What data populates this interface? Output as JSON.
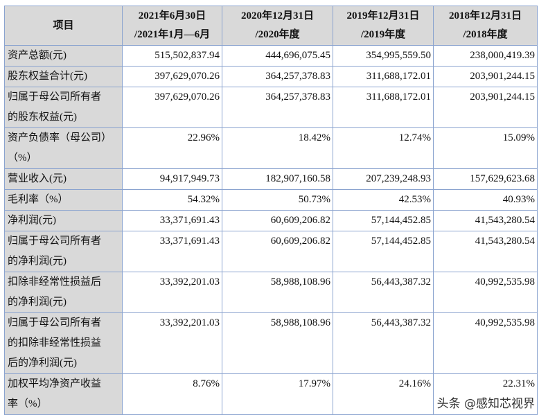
{
  "header": {
    "item": "项目",
    "columns": [
      [
        "2021年6月30日",
        "/2021年1月—6月"
      ],
      [
        "2020年12月31日",
        "/2020年度"
      ],
      [
        "2019年12月31日",
        "/2019年度"
      ],
      [
        "2018年12月31日",
        "/2018年度"
      ]
    ]
  },
  "rows": [
    {
      "label": [
        "资产总额(元)"
      ],
      "values": [
        "515,502,837.94",
        "444,696,075.45",
        "354,995,559.50",
        "238,000,419.39"
      ]
    },
    {
      "label": [
        "股东权益合计(元)"
      ],
      "values": [
        "397,629,070.26",
        "364,257,378.83",
        "311,688,172.01",
        "203,901,244.15"
      ]
    },
    {
      "label": [
        "归属于母公司所有者",
        "的股东权益(元)"
      ],
      "values": [
        "397,629,070.26",
        "364,257,378.83",
        "311,688,172.01",
        "203,901,244.15"
      ]
    },
    {
      "label": [
        "资产负债率（母公司）",
        "（%）"
      ],
      "values": [
        "22.96%",
        "18.42%",
        "12.74%",
        "15.09%"
      ]
    },
    {
      "label": [
        "营业收入(元)"
      ],
      "values": [
        "94,917,949.73",
        "182,907,160.58",
        "207,239,248.93",
        "157,629,623.68"
      ]
    },
    {
      "label": [
        "毛利率（%）"
      ],
      "values": [
        "54.32%",
        "50.73%",
        "42.53%",
        "40.93%"
      ]
    },
    {
      "label": [
        "净利润(元)"
      ],
      "values": [
        "33,371,691.43",
        "60,609,206.82",
        "57,144,452.85",
        "41,543,280.54"
      ]
    },
    {
      "label": [
        "归属于母公司所有者",
        "的净利润(元)"
      ],
      "values": [
        "33,371,691.43",
        "60,609,206.82",
        "57,144,452.85",
        "41,543,280.54"
      ]
    },
    {
      "label": [
        "扣除非经常性损益后",
        "的净利润(元)"
      ],
      "values": [
        "33,392,201.03",
        "58,988,108.96",
        "56,443,387.32",
        "40,992,535.98"
      ]
    },
    {
      "label": [
        "归属于母公司所有者",
        "的扣除非经常性损益",
        "后的净利润(元)"
      ],
      "values": [
        "33,392,201.03",
        "58,988,108.96",
        "56,443,387.32",
        "40,992,535.98"
      ]
    },
    {
      "label": [
        "加权平均净资产收益",
        "率（%）"
      ],
      "values": [
        "8.76%",
        "17.97%",
        "24.16%",
        "22.31%"
      ]
    }
  ],
  "watermark": "头条 @感知芯视界",
  "colors": {
    "header_bg": "#d9d9d9",
    "border": "#8aa3cf"
  }
}
